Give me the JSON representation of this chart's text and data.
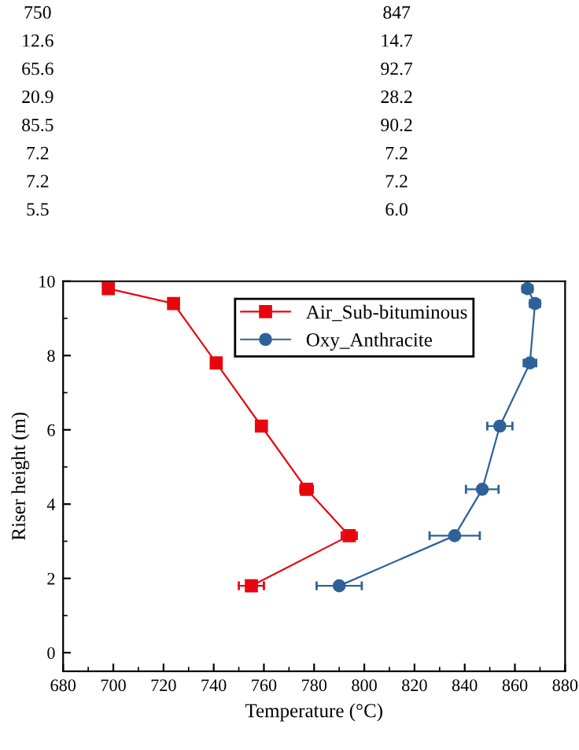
{
  "chart_data": [
    {
      "type": "other",
      "annotations": [
        "750",
        "847",
        "12.6",
        "14.7",
        "65.6",
        "92.7",
        "20.9",
        "28.2",
        "85.5",
        "90.2",
        "7.2",
        "7.2",
        "7.2",
        "7.2",
        "5.5",
        "6.0"
      ]
    },
    {
      "type": "line",
      "xlabel": "Temperature (°C)",
      "ylabel": "Riser height (m)",
      "xlim": [
        680,
        880
      ],
      "ylim": [
        -0.5,
        10
      ],
      "xticks": [
        680,
        700,
        720,
        740,
        760,
        780,
        800,
        820,
        840,
        860,
        880
      ],
      "yticks": [
        0,
        2,
        4,
        6,
        8,
        10
      ],
      "grid": false,
      "legend": "top",
      "line_style": "solid",
      "series": [
        {
          "name": "Air_Sub-bituminous",
          "color": "#e8060e",
          "marker": "square",
          "x": [
            698,
            724,
            741,
            759,
            777,
            794,
            755
          ],
          "values": [
            9.8,
            9.4,
            7.8,
            6.1,
            4.4,
            3.15,
            1.8
          ],
          "xerrors": [
            1,
            1,
            1,
            1,
            2.5,
            3,
            5
          ]
        },
        {
          "name": "Oxy_Anthracite",
          "color": "#2f6199",
          "marker": "circle",
          "x": [
            865,
            868,
            866,
            854,
            847,
            836,
            790
          ],
          "values": [
            9.8,
            9.4,
            7.8,
            6.1,
            4.4,
            3.15,
            1.8
          ],
          "xerrors": [
            2,
            2,
            2.5,
            5,
            6.5,
            10,
            9
          ]
        }
      ]
    }
  ]
}
